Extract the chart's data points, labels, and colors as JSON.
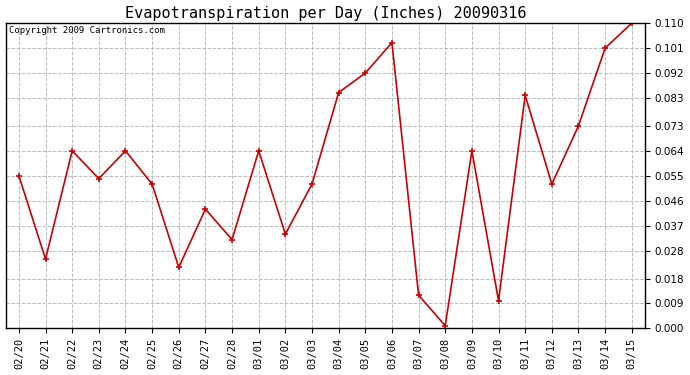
{
  "title": "Evapotranspiration per Day (Inches) 20090316",
  "copyright": "Copyright 2009 Cartronics.com",
  "dates": [
    "02/20",
    "02/21",
    "02/22",
    "02/23",
    "02/24",
    "02/25",
    "02/26",
    "02/27",
    "02/28",
    "03/01",
    "03/02",
    "03/03",
    "03/04",
    "03/05",
    "03/06",
    "03/07",
    "03/08",
    "03/09",
    "03/10",
    "03/11",
    "03/12",
    "03/13",
    "03/14",
    "03/15"
  ],
  "values": [
    0.055,
    0.025,
    0.064,
    0.054,
    0.064,
    0.052,
    0.022,
    0.043,
    0.032,
    0.064,
    0.034,
    0.052,
    0.085,
    0.092,
    0.103,
    0.012,
    0.001,
    0.064,
    0.01,
    0.084,
    0.052,
    0.073,
    0.101,
    0.11
  ],
  "line_color": "#cc0000",
  "marker": "+",
  "marker_size": 5,
  "marker_color": "#cc0000",
  "grid_color": "#bbbbbb",
  "grid_style": "--",
  "bg_color": "#ffffff",
  "border_color": "#000000",
  "ylim": [
    0.0,
    0.11
  ],
  "yticks": [
    0.0,
    0.009,
    0.018,
    0.028,
    0.037,
    0.046,
    0.055,
    0.064,
    0.073,
    0.083,
    0.092,
    0.101,
    0.11
  ],
  "title_fontsize": 11,
  "copyright_fontsize": 6.5,
  "tick_fontsize": 7.5
}
